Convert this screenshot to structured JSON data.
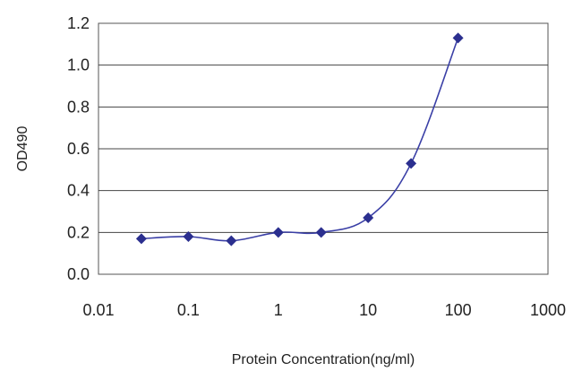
{
  "chart_data": {
    "type": "line",
    "xlabel": "Protein Concentration(ng/ml)",
    "ylabel": "OD490",
    "x_scale": "log",
    "xlim": [
      0.01,
      1000
    ],
    "ylim": [
      0.0,
      1.2
    ],
    "x_ticks": [
      "0.01",
      "0.1",
      "1",
      "10",
      "100",
      "1000"
    ],
    "y_ticks": [
      "0.0",
      "0.2",
      "0.4",
      "0.6",
      "0.8",
      "1.0",
      "1.2"
    ],
    "grid": "horizontal",
    "legend": "none",
    "series": [
      {
        "color": "#2b2f8f",
        "marker": "diamond",
        "x": [
          0.03,
          0.1,
          0.3,
          1,
          3,
          10,
          30,
          100
        ],
        "y": [
          0.17,
          0.18,
          0.16,
          0.2,
          0.2,
          0.27,
          0.53,
          1.13
        ]
      }
    ]
  }
}
